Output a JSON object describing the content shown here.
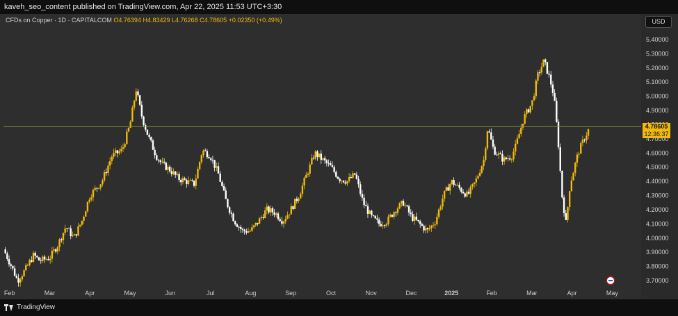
{
  "header": {
    "publisher_line": "kaveh_seo_content published on TradingView.com, Apr 22, 2025 11:53 UTC+3:30"
  },
  "legend": {
    "symbol": "CFDs on Copper · 1D · CAPITALCOM",
    "open": "O4.76394",
    "high": "H4.83429",
    "low": "L4.76268",
    "close": "C4.78605",
    "change": "+0.02350 (+0.49%)"
  },
  "currency_button": "USD",
  "last_price": {
    "value": "4.78605",
    "countdown": "12:36:37"
  },
  "footer": {
    "brand": "TradingView"
  },
  "colors": {
    "up": "#f0b90b",
    "down": "#ffffff",
    "background": "#2e2e2e",
    "price_line": "#8a8a3a"
  },
  "chart_data": {
    "type": "candlestick",
    "y_ticks": [
      "5.40000",
      "5.30000",
      "5.20000",
      "5.10000",
      "5.00000",
      "4.90000",
      "4.80000",
      "4.70000",
      "4.60000",
      "4.50000",
      "4.40000",
      "4.30000",
      "4.20000",
      "4.10000",
      "4.00000",
      "3.90000",
      "3.80000",
      "3.70000"
    ],
    "ylim": [
      3.65,
      5.45
    ],
    "x_labels": [
      "Feb",
      "Mar",
      "Apr",
      "May",
      "Jun",
      "Jul",
      "Aug",
      "Sep",
      "Oct",
      "Nov",
      "Dec",
      "2025",
      "Feb",
      "Mar",
      "Apr",
      "May"
    ],
    "x_label_bold": [
      false,
      false,
      false,
      false,
      false,
      false,
      false,
      false,
      false,
      false,
      false,
      true,
      false,
      false,
      false,
      false
    ],
    "x_label_positions": [
      0.4,
      1.4,
      2.4,
      3.4,
      4.4,
      5.4,
      6.4,
      7.4,
      8.4,
      9.4,
      10.4,
      11.4,
      12.4,
      13.4,
      14.4,
      15.4
    ],
    "x_range": [
      0.25,
      16.05
    ],
    "last_close": 4.78605,
    "path": [
      [
        0.25,
        3.92
      ],
      [
        0.45,
        3.8
      ],
      [
        0.6,
        3.7
      ],
      [
        0.8,
        3.78
      ],
      [
        1.0,
        3.88
      ],
      [
        1.15,
        3.84
      ],
      [
        1.4,
        3.86
      ],
      [
        1.6,
        3.95
      ],
      [
        1.8,
        4.08
      ],
      [
        2.0,
        4.0
      ],
      [
        2.2,
        4.12
      ],
      [
        2.4,
        4.3
      ],
      [
        2.7,
        4.4
      ],
      [
        2.95,
        4.58
      ],
      [
        3.2,
        4.62
      ],
      [
        3.4,
        4.8
      ],
      [
        3.55,
        5.05
      ],
      [
        3.7,
        4.85
      ],
      [
        3.85,
        4.72
      ],
      [
        4.05,
        4.58
      ],
      [
        4.2,
        4.52
      ],
      [
        4.4,
        4.48
      ],
      [
        4.6,
        4.42
      ],
      [
        4.8,
        4.4
      ],
      [
        5.0,
        4.38
      ],
      [
        5.2,
        4.62
      ],
      [
        5.4,
        4.58
      ],
      [
        5.6,
        4.45
      ],
      [
        5.8,
        4.25
      ],
      [
        6.0,
        4.12
      ],
      [
        6.2,
        4.05
      ],
      [
        6.4,
        4.05
      ],
      [
        6.6,
        4.12
      ],
      [
        6.8,
        4.2
      ],
      [
        7.0,
        4.18
      ],
      [
        7.2,
        4.12
      ],
      [
        7.4,
        4.2
      ],
      [
        7.6,
        4.3
      ],
      [
        7.8,
        4.45
      ],
      [
        8.0,
        4.6
      ],
      [
        8.2,
        4.55
      ],
      [
        8.4,
        4.5
      ],
      [
        8.6,
        4.42
      ],
      [
        8.8,
        4.4
      ],
      [
        9.0,
        4.45
      ],
      [
        9.2,
        4.25
      ],
      [
        9.4,
        4.15
      ],
      [
        9.6,
        4.1
      ],
      [
        9.8,
        4.12
      ],
      [
        10.0,
        4.2
      ],
      [
        10.2,
        4.25
      ],
      [
        10.4,
        4.15
      ],
      [
        10.6,
        4.1
      ],
      [
        10.8,
        4.05
      ],
      [
        11.0,
        4.12
      ],
      [
        11.2,
        4.3
      ],
      [
        11.4,
        4.4
      ],
      [
        11.6,
        4.35
      ],
      [
        11.8,
        4.3
      ],
      [
        12.0,
        4.4
      ],
      [
        12.2,
        4.55
      ],
      [
        12.3,
        4.78
      ],
      [
        12.45,
        4.62
      ],
      [
        12.7,
        4.55
      ],
      [
        12.9,
        4.58
      ],
      [
        13.0,
        4.65
      ],
      [
        13.2,
        4.85
      ],
      [
        13.4,
        4.95
      ],
      [
        13.55,
        5.15
      ],
      [
        13.7,
        5.25
      ],
      [
        13.85,
        5.12
      ],
      [
        13.95,
        5.0
      ],
      [
        14.05,
        4.7
      ],
      [
        14.15,
        4.3
      ],
      [
        14.25,
        4.1
      ],
      [
        14.35,
        4.38
      ],
      [
        14.55,
        4.6
      ],
      [
        14.7,
        4.7
      ],
      [
        14.85,
        4.78605
      ]
    ]
  }
}
